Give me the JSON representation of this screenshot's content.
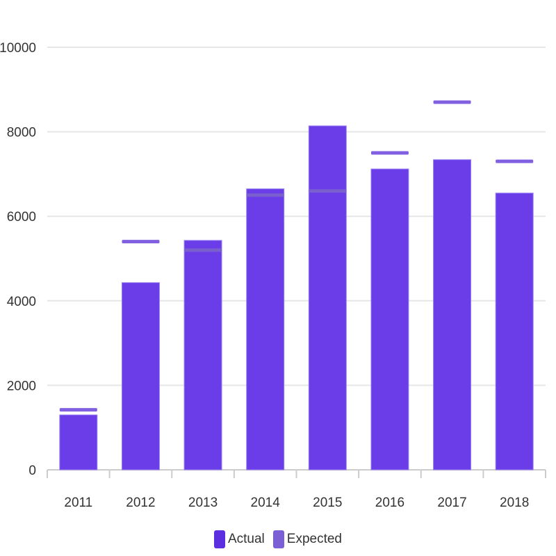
{
  "chart_data": {
    "type": "bar",
    "categories": [
      "2011",
      "2012",
      "2013",
      "2014",
      "2015",
      "2016",
      "2017",
      "2018"
    ],
    "series": [
      {
        "name": "Actual",
        "values": [
          1300,
          4430,
          5430,
          6650,
          8140,
          7120,
          7340,
          6550
        ]
      },
      {
        "name": "Expected",
        "values": [
          1420,
          5400,
          5200,
          6500,
          6600,
          7500,
          8700,
          7300
        ]
      }
    ],
    "yticks": [
      "0",
      "2000",
      "4000",
      "6000",
      "8000",
      "10000"
    ],
    "ylim": [
      0,
      10000
    ],
    "grid": true,
    "legend_position": "bottom",
    "title": "",
    "xlabel": "",
    "ylabel": "",
    "colors": {
      "actual": "#6a3de8",
      "expected": "#8060e0",
      "expected_inside": "#7a5fcf",
      "grid": "#e6e6e6",
      "axis": "#cccccc"
    }
  }
}
